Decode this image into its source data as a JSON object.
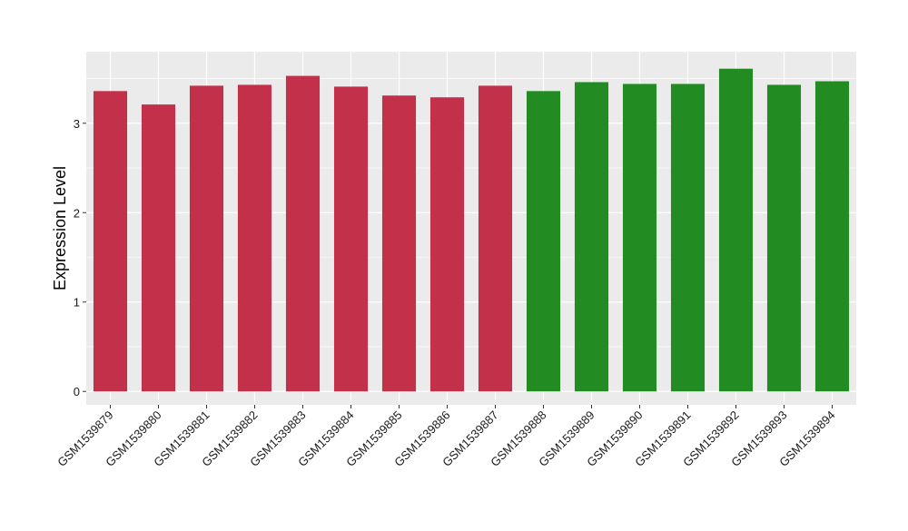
{
  "chart_data": {
    "type": "bar",
    "title": "",
    "xlabel": "",
    "ylabel": "Expression Level",
    "ylim": [
      -0.15,
      3.8
    ],
    "yticks": [
      0,
      1,
      2,
      3
    ],
    "grid": true,
    "legend": "none",
    "panel_background": "#ebebeb",
    "grid_color": "#ffffff",
    "categories": [
      "GSM1539879",
      "GSM1539880",
      "GSM1539881",
      "GSM1539882",
      "GSM1539883",
      "GSM1539884",
      "GSM1539885",
      "GSM1539886",
      "GSM1539887",
      "GSM1539888",
      "GSM1539889",
      "GSM1539890",
      "GSM1539891",
      "GSM1539892",
      "GSM1539893",
      "GSM1539894"
    ],
    "values": [
      3.36,
      3.21,
      3.42,
      3.43,
      3.53,
      3.41,
      3.31,
      3.29,
      3.42,
      3.36,
      3.46,
      3.44,
      3.44,
      3.61,
      3.43,
      3.47
    ],
    "colors": [
      "#c3304a",
      "#c3304a",
      "#c3304a",
      "#c3304a",
      "#c3304a",
      "#c3304a",
      "#c3304a",
      "#c3304a",
      "#c3304a",
      "#228b22",
      "#228b22",
      "#228b22",
      "#228b22",
      "#228b22",
      "#228b22",
      "#228b22"
    ]
  }
}
